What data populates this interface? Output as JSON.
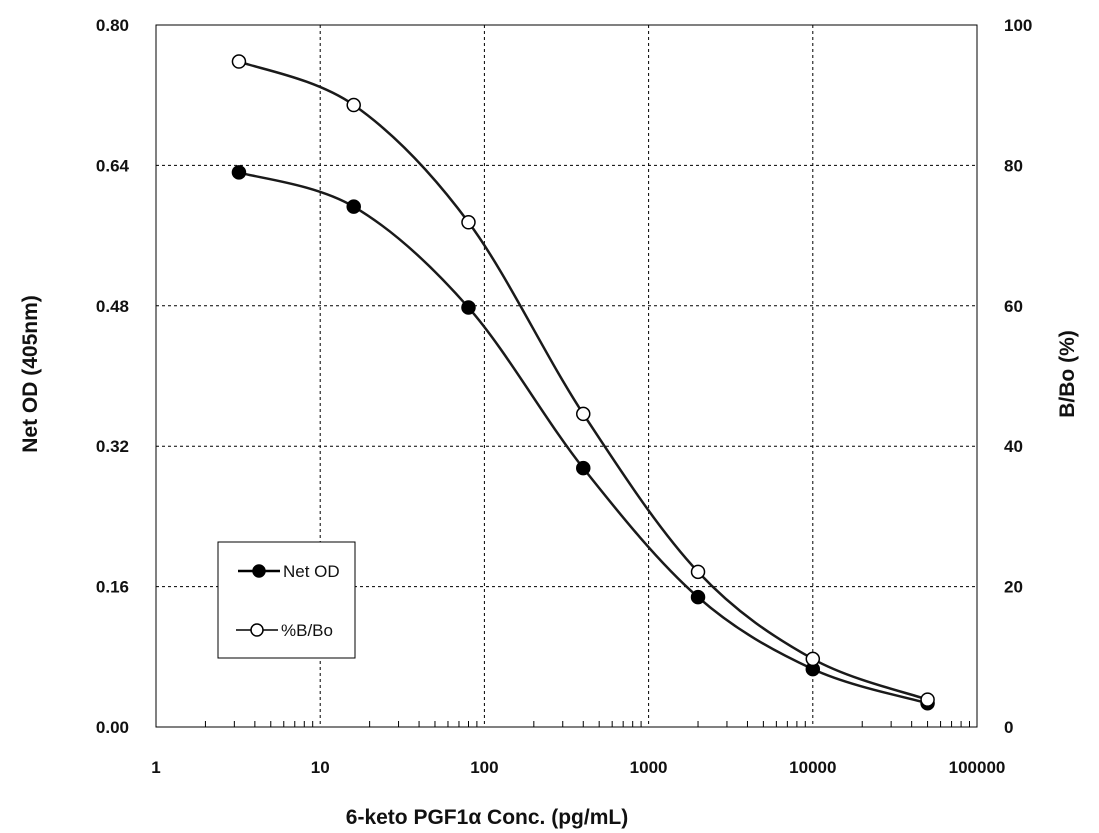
{
  "chart_data": {
    "type": "line",
    "title": "",
    "xlabel": "6-keto PGF1α Conc. (pg/mL)",
    "ylabel": "Net OD (405nm)",
    "y2label": "B/Bo (%)",
    "x_scale": "log",
    "xlim": [
      1,
      100000
    ],
    "ylim": [
      0,
      0.8
    ],
    "y2lim": [
      0,
      100
    ],
    "x_ticks": [
      "1",
      "10",
      "100",
      "1000",
      "10000",
      "100000"
    ],
    "y_ticks": [
      "0.00",
      "0.16",
      "0.32",
      "0.48",
      "0.64",
      "0.80"
    ],
    "y2_ticks": [
      "0",
      "20",
      "40",
      "60",
      "80",
      "100"
    ],
    "grid": true,
    "legend_position": "lower-left",
    "x": [
      3.2,
      16,
      80,
      400,
      2000,
      10000,
      50000
    ],
    "series": [
      {
        "name": "Net OD",
        "axis": "left",
        "marker": "filled-circle",
        "values": [
          0.632,
          0.593,
          0.478,
          0.295,
          0.148,
          0.066,
          0.027
        ]
      },
      {
        "name": "%B/Bo",
        "axis": "right",
        "marker": "open-circle",
        "values": [
          94.8,
          88.6,
          71.9,
          44.6,
          22.1,
          9.7,
          3.9
        ]
      }
    ]
  }
}
